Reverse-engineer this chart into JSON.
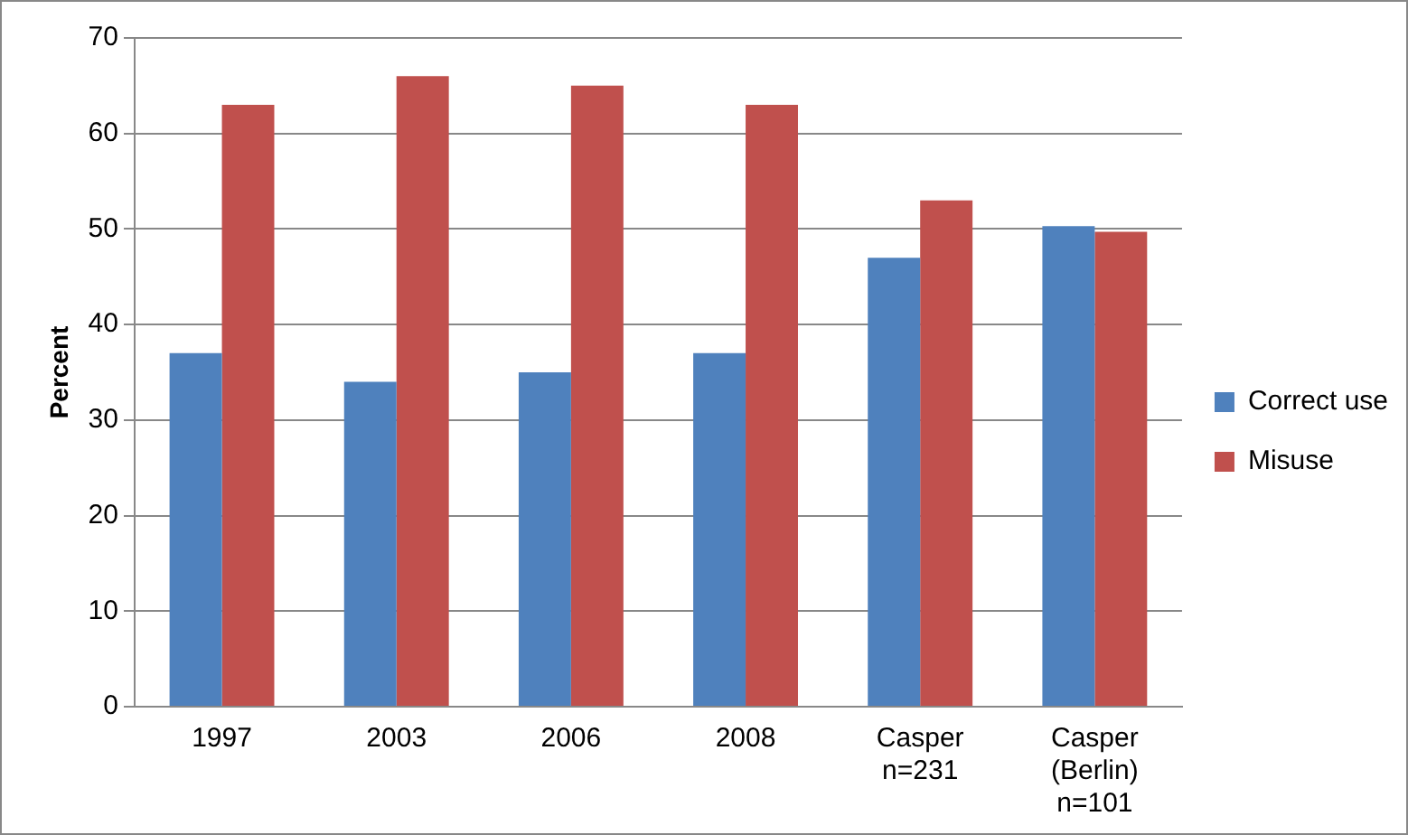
{
  "chart_data": {
    "type": "bar",
    "ylabel": "Percent",
    "categories": [
      "1997",
      "2003",
      "2006",
      "2008",
      "Casper n=231",
      "Casper (Berlin) n=101"
    ],
    "series": [
      {
        "name": "Correct use",
        "color": "#4f81bd",
        "values": [
          37,
          34,
          35,
          37,
          47,
          50.3
        ]
      },
      {
        "name": "Misuse",
        "color": "#c0504d",
        "values": [
          63,
          66,
          65,
          63,
          53,
          49.7
        ]
      }
    ],
    "ylim": [
      0,
      70
    ],
    "yticks": [
      0,
      10,
      20,
      30,
      40,
      50,
      60,
      70
    ],
    "grid": "y",
    "legend": "right"
  }
}
